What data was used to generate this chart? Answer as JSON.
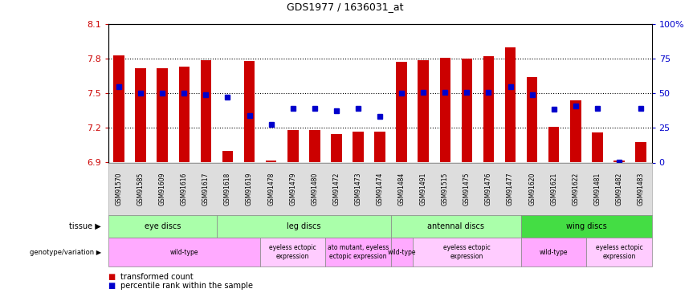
{
  "title": "GDS1977 / 1636031_at",
  "samples": [
    "GSM91570",
    "GSM91585",
    "GSM91609",
    "GSM91616",
    "GSM91617",
    "GSM91618",
    "GSM91619",
    "GSM91478",
    "GSM91479",
    "GSM91480",
    "GSM91472",
    "GSM91473",
    "GSM91474",
    "GSM91484",
    "GSM91491",
    "GSM91515",
    "GSM91475",
    "GSM91476",
    "GSM91477",
    "GSM91620",
    "GSM91621",
    "GSM91622",
    "GSM91481",
    "GSM91482",
    "GSM91483"
  ],
  "red_values": [
    7.83,
    7.72,
    7.72,
    7.73,
    7.79,
    7.0,
    7.78,
    6.92,
    7.18,
    7.18,
    7.15,
    7.17,
    7.17,
    7.77,
    7.79,
    7.81,
    7.8,
    7.82,
    7.9,
    7.64,
    7.21,
    7.44,
    7.16,
    6.92,
    7.08
  ],
  "blue_values": [
    7.56,
    7.5,
    7.5,
    7.5,
    7.49,
    7.47,
    7.31,
    7.23,
    7.37,
    7.37,
    7.35,
    7.37,
    7.3,
    7.5,
    7.51,
    7.51,
    7.51,
    7.51,
    7.56,
    7.49,
    7.36,
    7.39,
    7.37,
    6.9,
    7.37
  ],
  "ylim_left": [
    6.9,
    8.1
  ],
  "ylim_right": [
    0,
    100
  ],
  "yticks_left": [
    6.9,
    7.2,
    7.5,
    7.8,
    8.1
  ],
  "yticks_right": [
    0,
    25,
    50,
    75,
    100
  ],
  "ytick_labels_left": [
    "6.9",
    "7.2",
    "7.5",
    "7.8",
    "8.1"
  ],
  "ytick_labels_right": [
    "0",
    "25",
    "50",
    "75",
    "100%"
  ],
  "hlines": [
    7.2,
    7.5,
    7.8
  ],
  "red_color": "#cc0000",
  "blue_color": "#0000cc",
  "base_value": 6.9,
  "tissue_groups": [
    {
      "label": "eye discs",
      "start": 0,
      "end": 5,
      "color": "#aaffaa"
    },
    {
      "label": "leg discs",
      "start": 5,
      "end": 13,
      "color": "#aaffaa"
    },
    {
      "label": "antennal discs",
      "start": 13,
      "end": 19,
      "color": "#aaffaa"
    },
    {
      "label": "wing discs",
      "start": 19,
      "end": 25,
      "color": "#44dd44"
    }
  ],
  "genotype_groups": [
    {
      "label": "wild-type",
      "start": 0,
      "end": 7,
      "color": "#ffaaff"
    },
    {
      "label": "eyeless ectopic\nexpression",
      "start": 7,
      "end": 10,
      "color": "#ffccff"
    },
    {
      "label": "ato mutant, eyeless\nectopic expression",
      "start": 10,
      "end": 13,
      "color": "#ffaaff"
    },
    {
      "label": "wild-type",
      "start": 13,
      "end": 14,
      "color": "#ffaaff"
    },
    {
      "label": "eyeless ectopic\nexpression",
      "start": 14,
      "end": 19,
      "color": "#ffccff"
    },
    {
      "label": "wild-type",
      "start": 19,
      "end": 22,
      "color": "#ffaaff"
    },
    {
      "label": "eyeless ectopic\nexpression",
      "start": 22,
      "end": 25,
      "color": "#ffccff"
    }
  ]
}
